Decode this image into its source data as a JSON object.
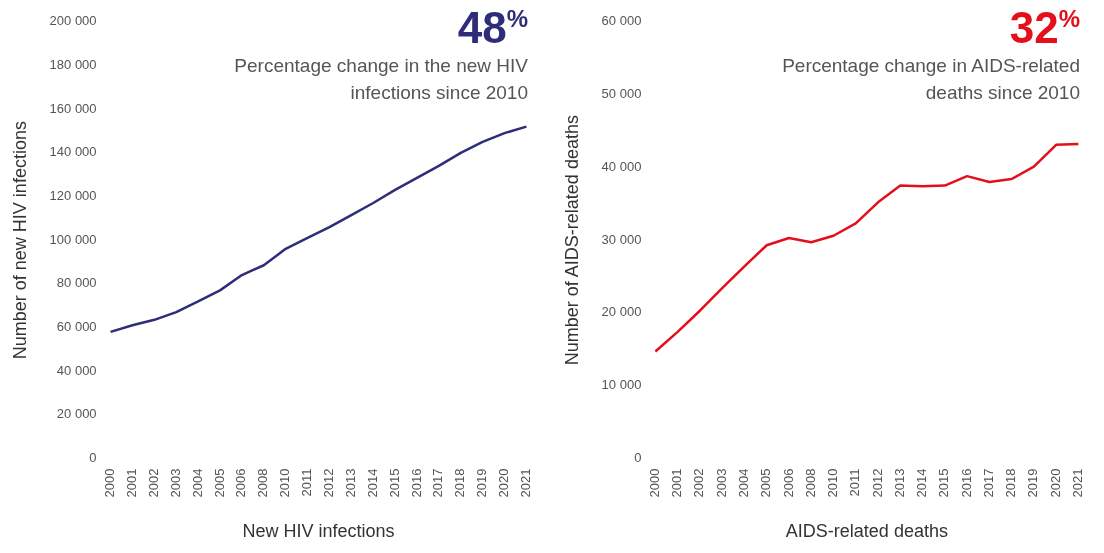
{
  "chart_data": [
    {
      "type": "line",
      "title": "48$^{%}$",
      "subtitle": "Percentage change in the new HIV infections since 2010",
      "xlabel": "New HIV infections",
      "ylabel": "Number of new HIV infections",
      "categories": [
        "2000",
        "2001",
        "2002",
        "2003",
        "2004",
        "2005",
        "2006",
        "2008",
        "2010",
        "2011",
        "2012",
        "2013",
        "2014",
        "2015",
        "2016",
        "2017",
        "2018",
        "2019",
        "2020",
        "2021"
      ],
      "series": [
        {
          "color": "#2e2d7a",
          "values": [
            58000,
            61000,
            63500,
            67000,
            72000,
            77000,
            84000,
            88500,
            96000,
            101000,
            106000,
            111500,
            117000,
            123000,
            128500,
            134000,
            140000,
            145000,
            149000,
            152000
          ]
        }
      ],
      "ylim": [
        0,
        200000
      ],
      "yticks": [
        {
          "value": 0,
          "label": "0"
        },
        {
          "value": 20000,
          "label": "20 000"
        },
        {
          "value": 40000,
          "label": "40 000"
        },
        {
          "value": 60000,
          "label": "60 000"
        },
        {
          "value": 80000,
          "label": "80 000"
        },
        {
          "value": 100000,
          "label": "100 000"
        },
        {
          "value": 120000,
          "label": "120 000"
        },
        {
          "value": 140000,
          "label": "140 000"
        },
        {
          "value": 160000,
          "label": "160 000"
        },
        {
          "value": 180000,
          "label": "180 000"
        },
        {
          "value": 200000,
          "label": "200 000"
        }
      ],
      "grid": false,
      "legend": false,
      "marker": "none",
      "line_style": "solid"
    },
    {
      "type": "line",
      "title": "32$^{%}$",
      "subtitle": "Percentage change in AIDS-related deaths since 2010",
      "xlabel": "AIDS-related deaths",
      "ylabel": "Number of AIDS-related deaths",
      "categories": [
        "2000",
        "2001",
        "2002",
        "2003",
        "2004",
        "2005",
        "2006",
        "2008",
        "2010",
        "2011",
        "2012",
        "2013",
        "2014",
        "2015",
        "2016",
        "2017",
        "2018",
        "2019",
        "2020",
        "2021"
      ],
      "series": [
        {
          "color": "#e3101c",
          "values": [
            14700,
            17400,
            20300,
            23400,
            26400,
            29300,
            30300,
            29700,
            30600,
            32300,
            35200,
            37500,
            37400,
            37500,
            38800,
            38000,
            38400,
            40100,
            43100,
            43200
          ]
        }
      ],
      "ylim": [
        0,
        60000
      ],
      "yticks": [
        {
          "value": 0,
          "label": "0"
        },
        {
          "value": 10000,
          "label": "10 000"
        },
        {
          "value": 20000,
          "label": "20 000"
        },
        {
          "value": 30000,
          "label": "30 000"
        },
        {
          "value": 40000,
          "label": "40 000"
        },
        {
          "value": 50000,
          "label": "50 000"
        },
        {
          "value": 60000,
          "label": "60 000"
        }
      ],
      "grid": false,
      "legend": false,
      "marker": "none",
      "line_style": "solid"
    }
  ]
}
